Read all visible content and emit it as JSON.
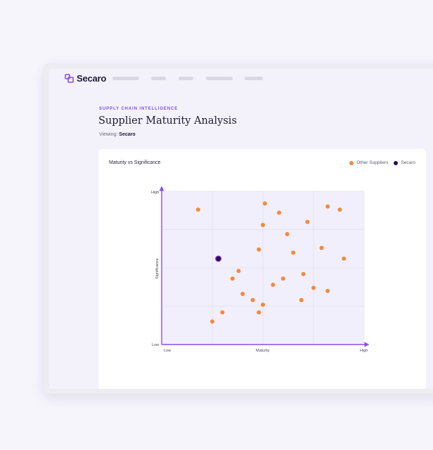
{
  "app": {
    "brand": "Secaro"
  },
  "header": {
    "eyebrow": "SUPPLY CHAIN INTELLIGENCE",
    "title": "Supplier Maturity Analysis",
    "viewing_label": "Viewing:",
    "viewing_value": "Secaro"
  },
  "chart_data": {
    "type": "scatter",
    "title": "Maturity vs Significance",
    "xlabel": "Maturity",
    "ylabel": "Significance",
    "x_tick_labels": [
      "Low",
      "High"
    ],
    "y_tick_labels": [
      "Low",
      "High"
    ],
    "xlim": [
      0,
      100
    ],
    "ylim": [
      0,
      100
    ],
    "grid": true,
    "legend_position": "top-right",
    "series": [
      {
        "name": "Other Suppliers",
        "color": "#f28a3d",
        "points": [
          [
            18,
            88
          ],
          [
            51,
            92
          ],
          [
            58,
            86
          ],
          [
            50,
            78
          ],
          [
            72,
            80
          ],
          [
            82,
            90
          ],
          [
            88,
            88
          ],
          [
            62,
            72
          ],
          [
            48,
            62
          ],
          [
            65,
            60
          ],
          [
            79,
            63
          ],
          [
            90,
            56
          ],
          [
            38,
            48
          ],
          [
            35,
            43
          ],
          [
            70,
            46
          ],
          [
            60,
            43
          ],
          [
            55,
            39
          ],
          [
            82,
            35
          ],
          [
            75,
            37
          ],
          [
            40,
            33
          ],
          [
            45,
            29
          ],
          [
            69,
            29
          ],
          [
            50,
            26
          ],
          [
            48,
            21
          ],
          [
            30,
            21
          ],
          [
            25,
            15
          ]
        ]
      },
      {
        "name": "Secaro",
        "color": "#2a0a5c",
        "points": [
          [
            28,
            56
          ]
        ]
      }
    ]
  }
}
